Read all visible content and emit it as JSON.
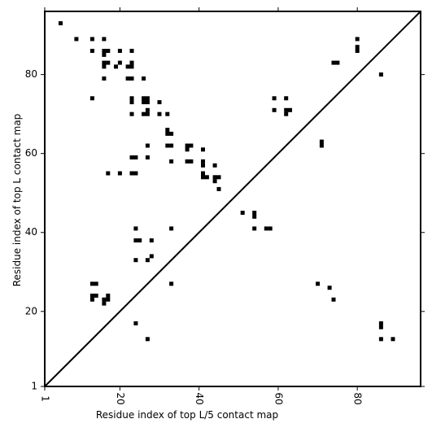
{
  "chart_data": {
    "type": "scatter",
    "title": "",
    "xlabel": "Residue index of top L/5 contact map",
    "ylabel": "Residue index of top L contact map",
    "xlim": [
      1,
      96
    ],
    "ylim": [
      1,
      96
    ],
    "x_ticks": [
      1,
      20,
      40,
      60,
      80
    ],
    "y_ticks": [
      1,
      20,
      40,
      60,
      80
    ],
    "diagonal_line": true,
    "grid": false,
    "marker": "square",
    "colors": {
      "marker": "#000000",
      "line": "#000000",
      "background": "#ffffff"
    },
    "points": [
      [
        5,
        93
      ],
      [
        9,
        89
      ],
      [
        13,
        89
      ],
      [
        16,
        89
      ],
      [
        13,
        86
      ],
      [
        16,
        86
      ],
      [
        17,
        86
      ],
      [
        20,
        86
      ],
      [
        23,
        86
      ],
      [
        16,
        85
      ],
      [
        16,
        83
      ],
      [
        17,
        83
      ],
      [
        23,
        83
      ],
      [
        20,
        83
      ],
      [
        16,
        82
      ],
      [
        19,
        82
      ],
      [
        22,
        82
      ],
      [
        23,
        82
      ],
      [
        16,
        79
      ],
      [
        22,
        79
      ],
      [
        23,
        79
      ],
      [
        26,
        79
      ],
      [
        13,
        74
      ],
      [
        23,
        74
      ],
      [
        26,
        74
      ],
      [
        27,
        74
      ],
      [
        23,
        73
      ],
      [
        26,
        73
      ],
      [
        27,
        73
      ],
      [
        30,
        73
      ],
      [
        27,
        71
      ],
      [
        23,
        70
      ],
      [
        26,
        70
      ],
      [
        27,
        70
      ],
      [
        30,
        70
      ],
      [
        32,
        70
      ],
      [
        32,
        66
      ],
      [
        32,
        65
      ],
      [
        33,
        65
      ],
      [
        27,
        62
      ],
      [
        32,
        62
      ],
      [
        33,
        62
      ],
      [
        37,
        62
      ],
      [
        38,
        62
      ],
      [
        37,
        61
      ],
      [
        41,
        61
      ],
      [
        23,
        59
      ],
      [
        24,
        59
      ],
      [
        27,
        59
      ],
      [
        33,
        58
      ],
      [
        37,
        58
      ],
      [
        38,
        58
      ],
      [
        41,
        58
      ],
      [
        41,
        57
      ],
      [
        44,
        57
      ],
      [
        17,
        55
      ],
      [
        20,
        55
      ],
      [
        23,
        55
      ],
      [
        24,
        55
      ],
      [
        41,
        55
      ],
      [
        41,
        54
      ],
      [
        42,
        54
      ],
      [
        44,
        54
      ],
      [
        45,
        54
      ],
      [
        44,
        53
      ],
      [
        45,
        51
      ],
      [
        51,
        45
      ],
      [
        54,
        45
      ],
      [
        54,
        44
      ],
      [
        24,
        41
      ],
      [
        33,
        41
      ],
      [
        54,
        41
      ],
      [
        57,
        41
      ],
      [
        58,
        41
      ],
      [
        24,
        38
      ],
      [
        25,
        38
      ],
      [
        28,
        38
      ],
      [
        28,
        34
      ],
      [
        24,
        33
      ],
      [
        27,
        33
      ],
      [
        13,
        27
      ],
      [
        14,
        27
      ],
      [
        33,
        27
      ],
      [
        70,
        27
      ],
      [
        73,
        26
      ],
      [
        13,
        24
      ],
      [
        14,
        24
      ],
      [
        17,
        24
      ],
      [
        13,
        23
      ],
      [
        16,
        23
      ],
      [
        17,
        23
      ],
      [
        74,
        23
      ],
      [
        16,
        22
      ],
      [
        24,
        17
      ],
      [
        86,
        17
      ],
      [
        86,
        16
      ],
      [
        27,
        13
      ],
      [
        86,
        13
      ],
      [
        89,
        13
      ],
      [
        59,
        74
      ],
      [
        62,
        74
      ],
      [
        59,
        71
      ],
      [
        62,
        71
      ],
      [
        63,
        71
      ],
      [
        62,
        70
      ],
      [
        71,
        63
      ],
      [
        71,
        62
      ],
      [
        74,
        83
      ],
      [
        75,
        83
      ],
      [
        80,
        89
      ],
      [
        80,
        87
      ],
      [
        80,
        86
      ],
      [
        86,
        80
      ]
    ]
  }
}
